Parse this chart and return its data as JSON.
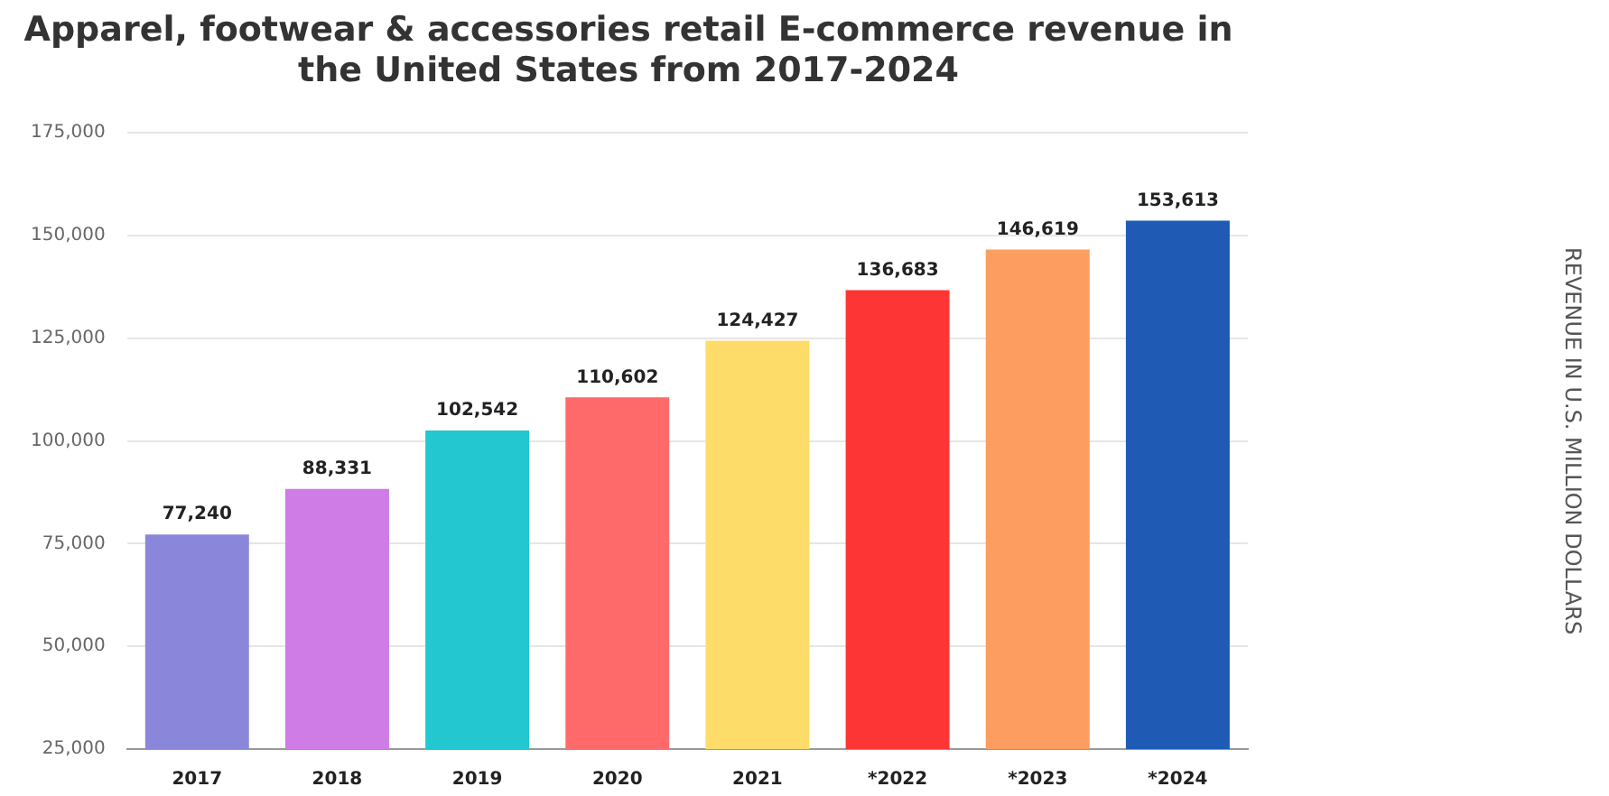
{
  "chart_data": {
    "type": "bar",
    "title": "Apparel, footwear & accessories retail E-commerce revenue in the United States from 2017-2024",
    "annotations": [
      "REVENUE IN U.S. MILLION DOLLARS"
    ],
    "categories": [
      "2017",
      "2018",
      "2019",
      "2020",
      "2021",
      "*2022",
      "*2023",
      "*2024"
    ],
    "values": [
      77240,
      88331,
      102542,
      110602,
      124427,
      136683,
      146619,
      153613
    ],
    "colors": [
      "#8a87db",
      "#cf7ce6",
      "#22c7cf",
      "#fe6a6a",
      "#fddc6a",
      "#fd3535",
      "#fd9d5f",
      "#1f5bb5"
    ],
    "ylim": [
      25000,
      175000
    ],
    "yticks": [
      {
        "value": 25000,
        "label": "25,000"
      },
      {
        "value": 50000,
        "label": "50,000"
      },
      {
        "value": 75000,
        "label": "75,000"
      },
      {
        "value": 100000,
        "label": "100,000"
      },
      {
        "value": 125000,
        "label": "125,000"
      },
      {
        "value": 150000,
        "label": "150,000"
      },
      {
        "value": 175000,
        "label": "175,000"
      }
    ],
    "value_labels": [
      "77,240",
      "88,331",
      "102,542",
      "110,602",
      "124,427",
      "136,683",
      "146,619",
      "153,613"
    ],
    "grid": "y"
  }
}
